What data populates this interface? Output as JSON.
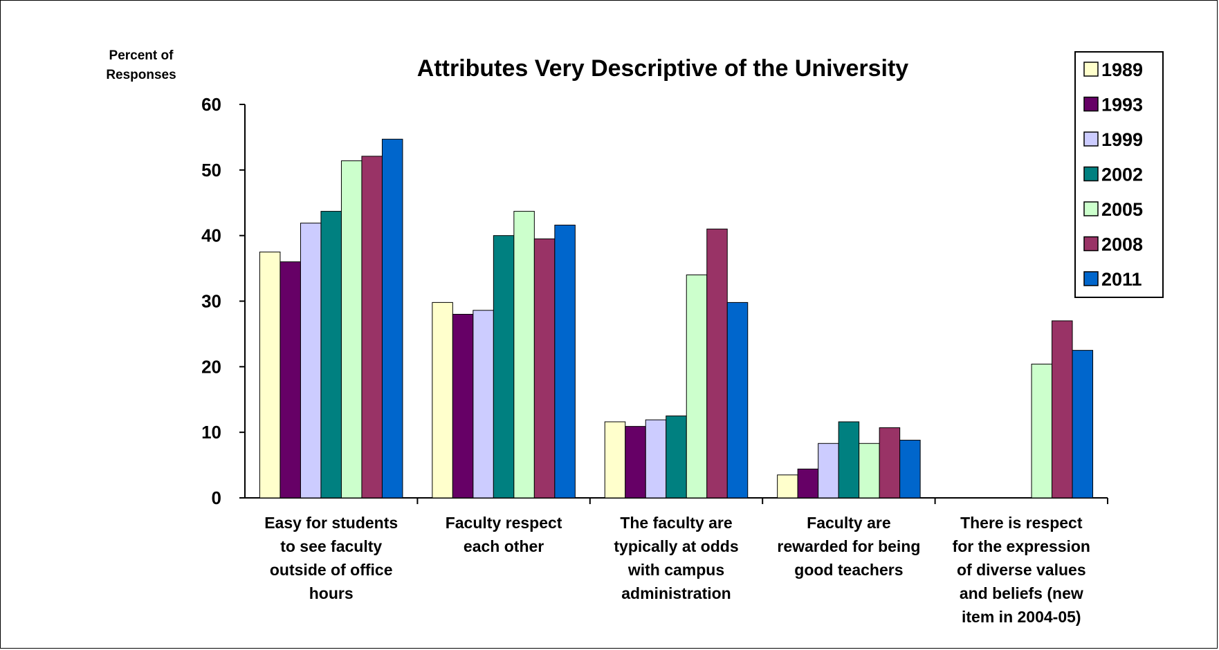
{
  "chart_data": {
    "type": "bar",
    "title": "Attributes Very Descriptive of the University",
    "ylabel_lines": [
      "Percent of",
      "Responses"
    ],
    "ylim": [
      0,
      60
    ],
    "yticks": [
      0,
      10,
      20,
      30,
      40,
      50,
      60
    ],
    "grid": false,
    "legend_position": "top-right",
    "categories": [
      [
        "Easy for students",
        "to see faculty",
        "outside of office",
        "hours"
      ],
      [
        "Faculty respect",
        "each other"
      ],
      [
        "The faculty are",
        "typically at odds",
        "with campus",
        "administration"
      ],
      [
        "Faculty are",
        "rewarded for being",
        "good teachers"
      ],
      [
        "There is respect",
        "for the expression",
        "of diverse values",
        "and beliefs (new",
        "item in 2004-05)"
      ]
    ],
    "series": [
      {
        "name": "1989",
        "color": "#ffffcc",
        "values": [
          37.5,
          29.8,
          11.6,
          3.5,
          null
        ]
      },
      {
        "name": "1993",
        "color": "#660066",
        "values": [
          36.0,
          28.0,
          10.9,
          4.4,
          null
        ]
      },
      {
        "name": "1999",
        "color": "#ccccff",
        "values": [
          41.9,
          28.6,
          11.9,
          8.3,
          null
        ]
      },
      {
        "name": "2002",
        "color": "#008080",
        "values": [
          43.7,
          40.0,
          12.5,
          11.6,
          null
        ]
      },
      {
        "name": "2005",
        "color": "#ccffcc",
        "values": [
          51.4,
          43.7,
          34.0,
          8.3,
          20.4
        ]
      },
      {
        "name": "2008",
        "color": "#993366",
        "values": [
          52.1,
          39.5,
          41.0,
          10.7,
          27.0
        ]
      },
      {
        "name": "2011",
        "color": "#0066cc",
        "values": [
          54.7,
          41.6,
          29.8,
          8.8,
          22.5
        ]
      }
    ]
  }
}
